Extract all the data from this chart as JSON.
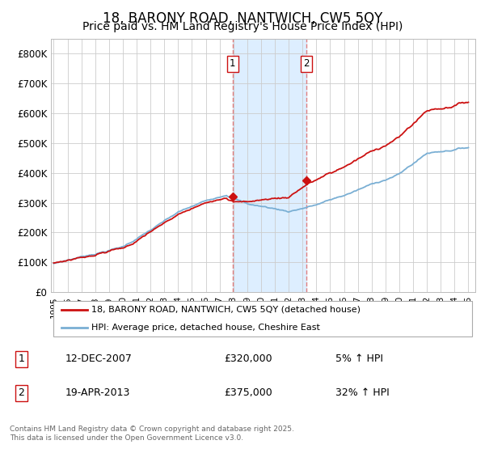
{
  "title": "18, BARONY ROAD, NANTWICH, CW5 5QY",
  "subtitle": "Price paid vs. HM Land Registry's House Price Index (HPI)",
  "title_fontsize": 12,
  "subtitle_fontsize": 10,
  "background_color": "#ffffff",
  "grid_color": "#cccccc",
  "y_ticks": [
    0,
    100000,
    200000,
    300000,
    400000,
    500000,
    600000,
    700000,
    800000
  ],
  "y_tick_labels": [
    "£0",
    "£100K",
    "£200K",
    "£300K",
    "£400K",
    "£500K",
    "£600K",
    "£700K",
    "£800K"
  ],
  "hpi_color": "#7aafd4",
  "price_color": "#cc1111",
  "marker_color": "#cc1111",
  "annotation_bg": "#ddeeff",
  "annotation_line_color": "#e08080",
  "sale1_x": 2007.95,
  "sale1_y": 320000,
  "sale2_x": 2013.29,
  "sale2_y": 375000,
  "legend_label_red": "18, BARONY ROAD, NANTWICH, CW5 5QY (detached house)",
  "legend_label_blue": "HPI: Average price, detached house, Cheshire East",
  "table_row1": [
    "1",
    "12-DEC-2007",
    "£320,000",
    "5% ↑ HPI"
  ],
  "table_row2": [
    "2",
    "19-APR-2013",
    "£375,000",
    "32% ↑ HPI"
  ],
  "footer": "Contains HM Land Registry data © Crown copyright and database right 2025.\nThis data is licensed under the Open Government Licence v3.0.",
  "ylim": [
    0,
    850000
  ],
  "xlim": [
    1994.8,
    2025.5
  ]
}
